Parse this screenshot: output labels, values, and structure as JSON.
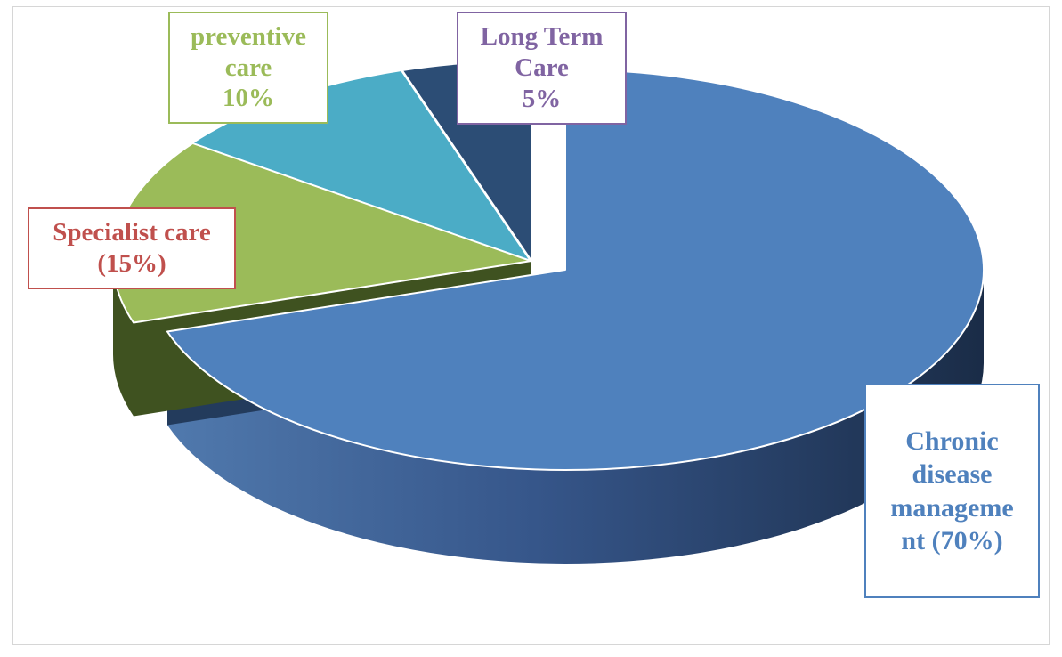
{
  "chart_data": {
    "type": "pie",
    "title": "",
    "slices": [
      {
        "key": "chronic",
        "label": "Chronic disease management",
        "value": 70,
        "color": "#4f81bd",
        "shade": "#2c4a74"
      },
      {
        "key": "specialist",
        "label": "Specialist care",
        "value": 15,
        "color": "#9bbb59",
        "shade": "#3f5220"
      },
      {
        "key": "preventive",
        "label": "preventive care",
        "value": 10,
        "color": "#4bacc6",
        "shade": "#276a7d"
      },
      {
        "key": "longterm",
        "label": "Long Term Care",
        "value": 5,
        "color": "#2c4d75",
        "shade": "#1a2f48"
      }
    ],
    "data_labels": {
      "preventive": {
        "lines": [
          "preventive",
          "care",
          "10%"
        ],
        "color": "#9bbb59"
      },
      "longterm": {
        "lines": [
          "Long Term",
          "Care",
          "5%"
        ],
        "color": "#8064a2"
      },
      "specialist": {
        "lines": [
          "Specialist care",
          "(15%)"
        ],
        "color": "#c0504d"
      },
      "chronic": {
        "lines": [
          "Chronic",
          "disease",
          "manageme",
          "nt (70%)"
        ],
        "color": "#4f81bd"
      }
    },
    "legend": "none",
    "style": "3d-exploded-pie"
  }
}
